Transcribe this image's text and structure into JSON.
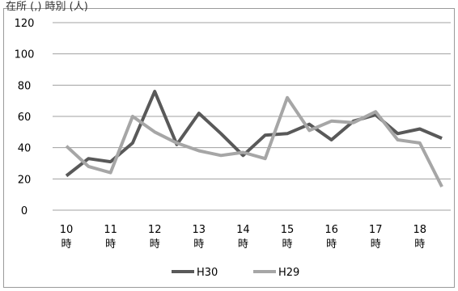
{
  "header": {
    "clipped_title": "在所 (,) 時別 (人)"
  },
  "chart_data": {
    "type": "line",
    "title": "",
    "xlabel": "",
    "ylabel": "",
    "ylim": [
      0,
      120
    ],
    "yticks": [
      0,
      20,
      40,
      60,
      80,
      100,
      120
    ],
    "x_tick_labels": [
      {
        "hour": "10",
        "unit": "時"
      },
      {
        "hour": "11",
        "unit": "時"
      },
      {
        "hour": "12",
        "unit": "時"
      },
      {
        "hour": "13",
        "unit": "時"
      },
      {
        "hour": "14",
        "unit": "時"
      },
      {
        "hour": "15",
        "unit": "時"
      },
      {
        "hour": "16",
        "unit": "時"
      },
      {
        "hour": "17",
        "unit": "時"
      },
      {
        "hour": "18",
        "unit": "時"
      }
    ],
    "x": [
      "10:00",
      "10:30",
      "11:00",
      "11:30",
      "12:00",
      "12:30",
      "13:00",
      "13:30",
      "14:00",
      "14:30",
      "15:00",
      "15:30",
      "16:00",
      "16:30",
      "17:00",
      "17:30",
      "18:00",
      "18:30"
    ],
    "series": [
      {
        "name": "H30",
        "color": "#595959",
        "values": [
          22,
          33,
          31,
          43,
          76,
          42,
          62,
          49,
          35,
          48,
          49,
          55,
          45,
          57,
          61,
          49,
          52,
          46
        ]
      },
      {
        "name": "H29",
        "color": "#a6a6a6",
        "values": [
          41,
          28,
          24,
          60,
          50,
          43,
          38,
          35,
          37,
          33,
          72,
          51,
          57,
          56,
          63,
          45,
          43,
          15
        ]
      }
    ],
    "grid": true,
    "legend_position": "bottom"
  }
}
